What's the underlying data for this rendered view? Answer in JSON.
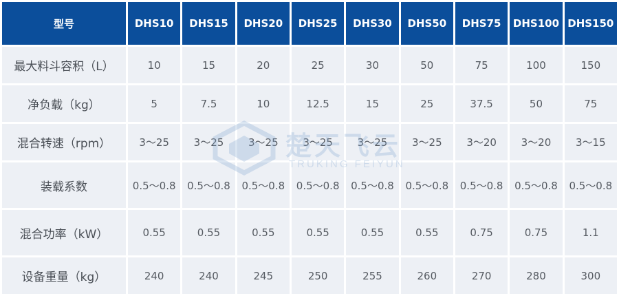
{
  "header": {
    "label": "型号",
    "models": [
      "DHS10",
      "DHS15",
      "DHS20",
      "DHS25",
      "DHS30",
      "DHS50",
      "DHS75",
      "DHS100",
      "DHS150"
    ]
  },
  "rows": [
    {
      "label": "最大料斗容积（L）",
      "values": [
        "10",
        "15",
        "20",
        "25",
        "30",
        "50",
        "75",
        "100",
        "150"
      ]
    },
    {
      "label": "净负载（kg）",
      "values": [
        "5",
        "7.5",
        "10",
        "12.5",
        "15",
        "25",
        "37.5",
        "50",
        "75"
      ]
    },
    {
      "label": "混合转速（rpm）",
      "values": [
        "3～25",
        "3～25",
        "3～25",
        "3～25",
        "3～25",
        "3～25",
        "3～20",
        "3～20",
        "3～15"
      ]
    },
    {
      "label": "装载系数",
      "values": [
        "0.5～0.8",
        "0.5～0.8",
        "0.5～0.8",
        "0.5～0.8",
        "0.5～0.8",
        "0.5～0.8",
        "0.5～0.8",
        "0.5～0.8",
        "0.5～0.8"
      ]
    },
    {
      "label": "混合功率（kW）",
      "values": [
        "0.55",
        "0.55",
        "0.55",
        "0.55",
        "0.55",
        "0.55",
        "0.75",
        "0.75",
        "1.1"
      ]
    },
    {
      "label": "设备重量（kg）",
      "values": [
        "240",
        "240",
        "245",
        "250",
        "255",
        "260",
        "270",
        "280",
        "300"
      ]
    }
  ],
  "watermark": {
    "cn": "楚天飞云",
    "en": "TRUKING FEIYUN",
    "logo_icon": "truking-logo-icon"
  },
  "colors": {
    "header_bg": "#0b4e9b",
    "cell_bg": "#edf0f5",
    "header_text": "#ffffff"
  }
}
